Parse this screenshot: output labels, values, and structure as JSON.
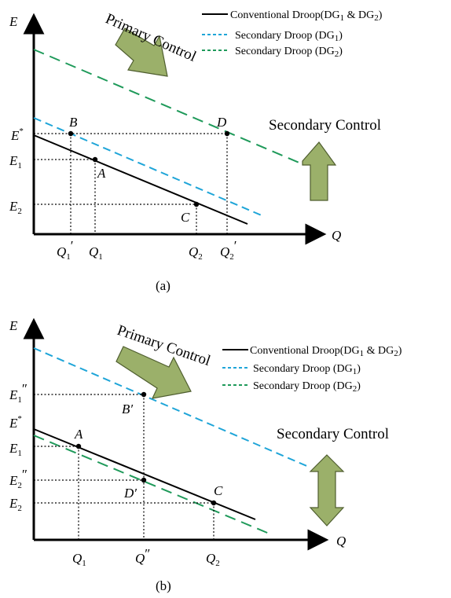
{
  "colors": {
    "conventional": "#000000",
    "dg1": "#1fa5d8",
    "dg2": "#1f9a5a",
    "arrow_fill": "#9bb06a",
    "arrow_stroke": "#4f5e2f"
  },
  "legend": {
    "conventional": {
      "main": "Conventional Droop(DG",
      "s1": "1",
      "mid": " & DG",
      "s2": "2",
      "end": ")"
    },
    "dg1": {
      "main": "Secondary Droop (DG",
      "sub": "1",
      "end": ")"
    },
    "dg2": {
      "main": "Secondary Droop (DG",
      "sub": "2",
      "end": ")"
    }
  },
  "captions": {
    "a": "(a)",
    "b": "(b)"
  },
  "annotations": {
    "primary": "Primary Control",
    "secondary": "Secondary Control"
  },
  "axes": {
    "x": "Q",
    "y": "E"
  },
  "panel_a": {
    "estar": {
      "base": "E",
      "sup": "*"
    },
    "e1": {
      "base": "E",
      "sub": "1"
    },
    "e2": {
      "base": "E",
      "sub": "2"
    },
    "q1p": {
      "base": "Q",
      "sub": "1",
      "prime": "′"
    },
    "q1": {
      "base": "Q",
      "sub": "1"
    },
    "q2": {
      "base": "Q",
      "sub": "2"
    },
    "q2p": {
      "base": "Q",
      "sub": "2",
      "prime": "′"
    },
    "points": {
      "A": "A",
      "B": "B",
      "C": "C",
      "D": "D"
    }
  },
  "panel_b": {
    "e1pp": {
      "base": "E",
      "sub": "1",
      "prime": "″"
    },
    "estar": {
      "base": "E",
      "sup": "*"
    },
    "e1": {
      "base": "E",
      "sub": "1"
    },
    "e2pp": {
      "base": "E",
      "sub": "2",
      "prime": "″"
    },
    "e2": {
      "base": "E",
      "sub": "2"
    },
    "q1": {
      "base": "Q",
      "sub": "1"
    },
    "qpp": {
      "base": "Q",
      "prime": "″"
    },
    "q2": {
      "base": "Q",
      "sub": "2"
    },
    "points": {
      "A": "A",
      "Bp": "B′",
      "C": "C",
      "Dp": "D′"
    }
  }
}
